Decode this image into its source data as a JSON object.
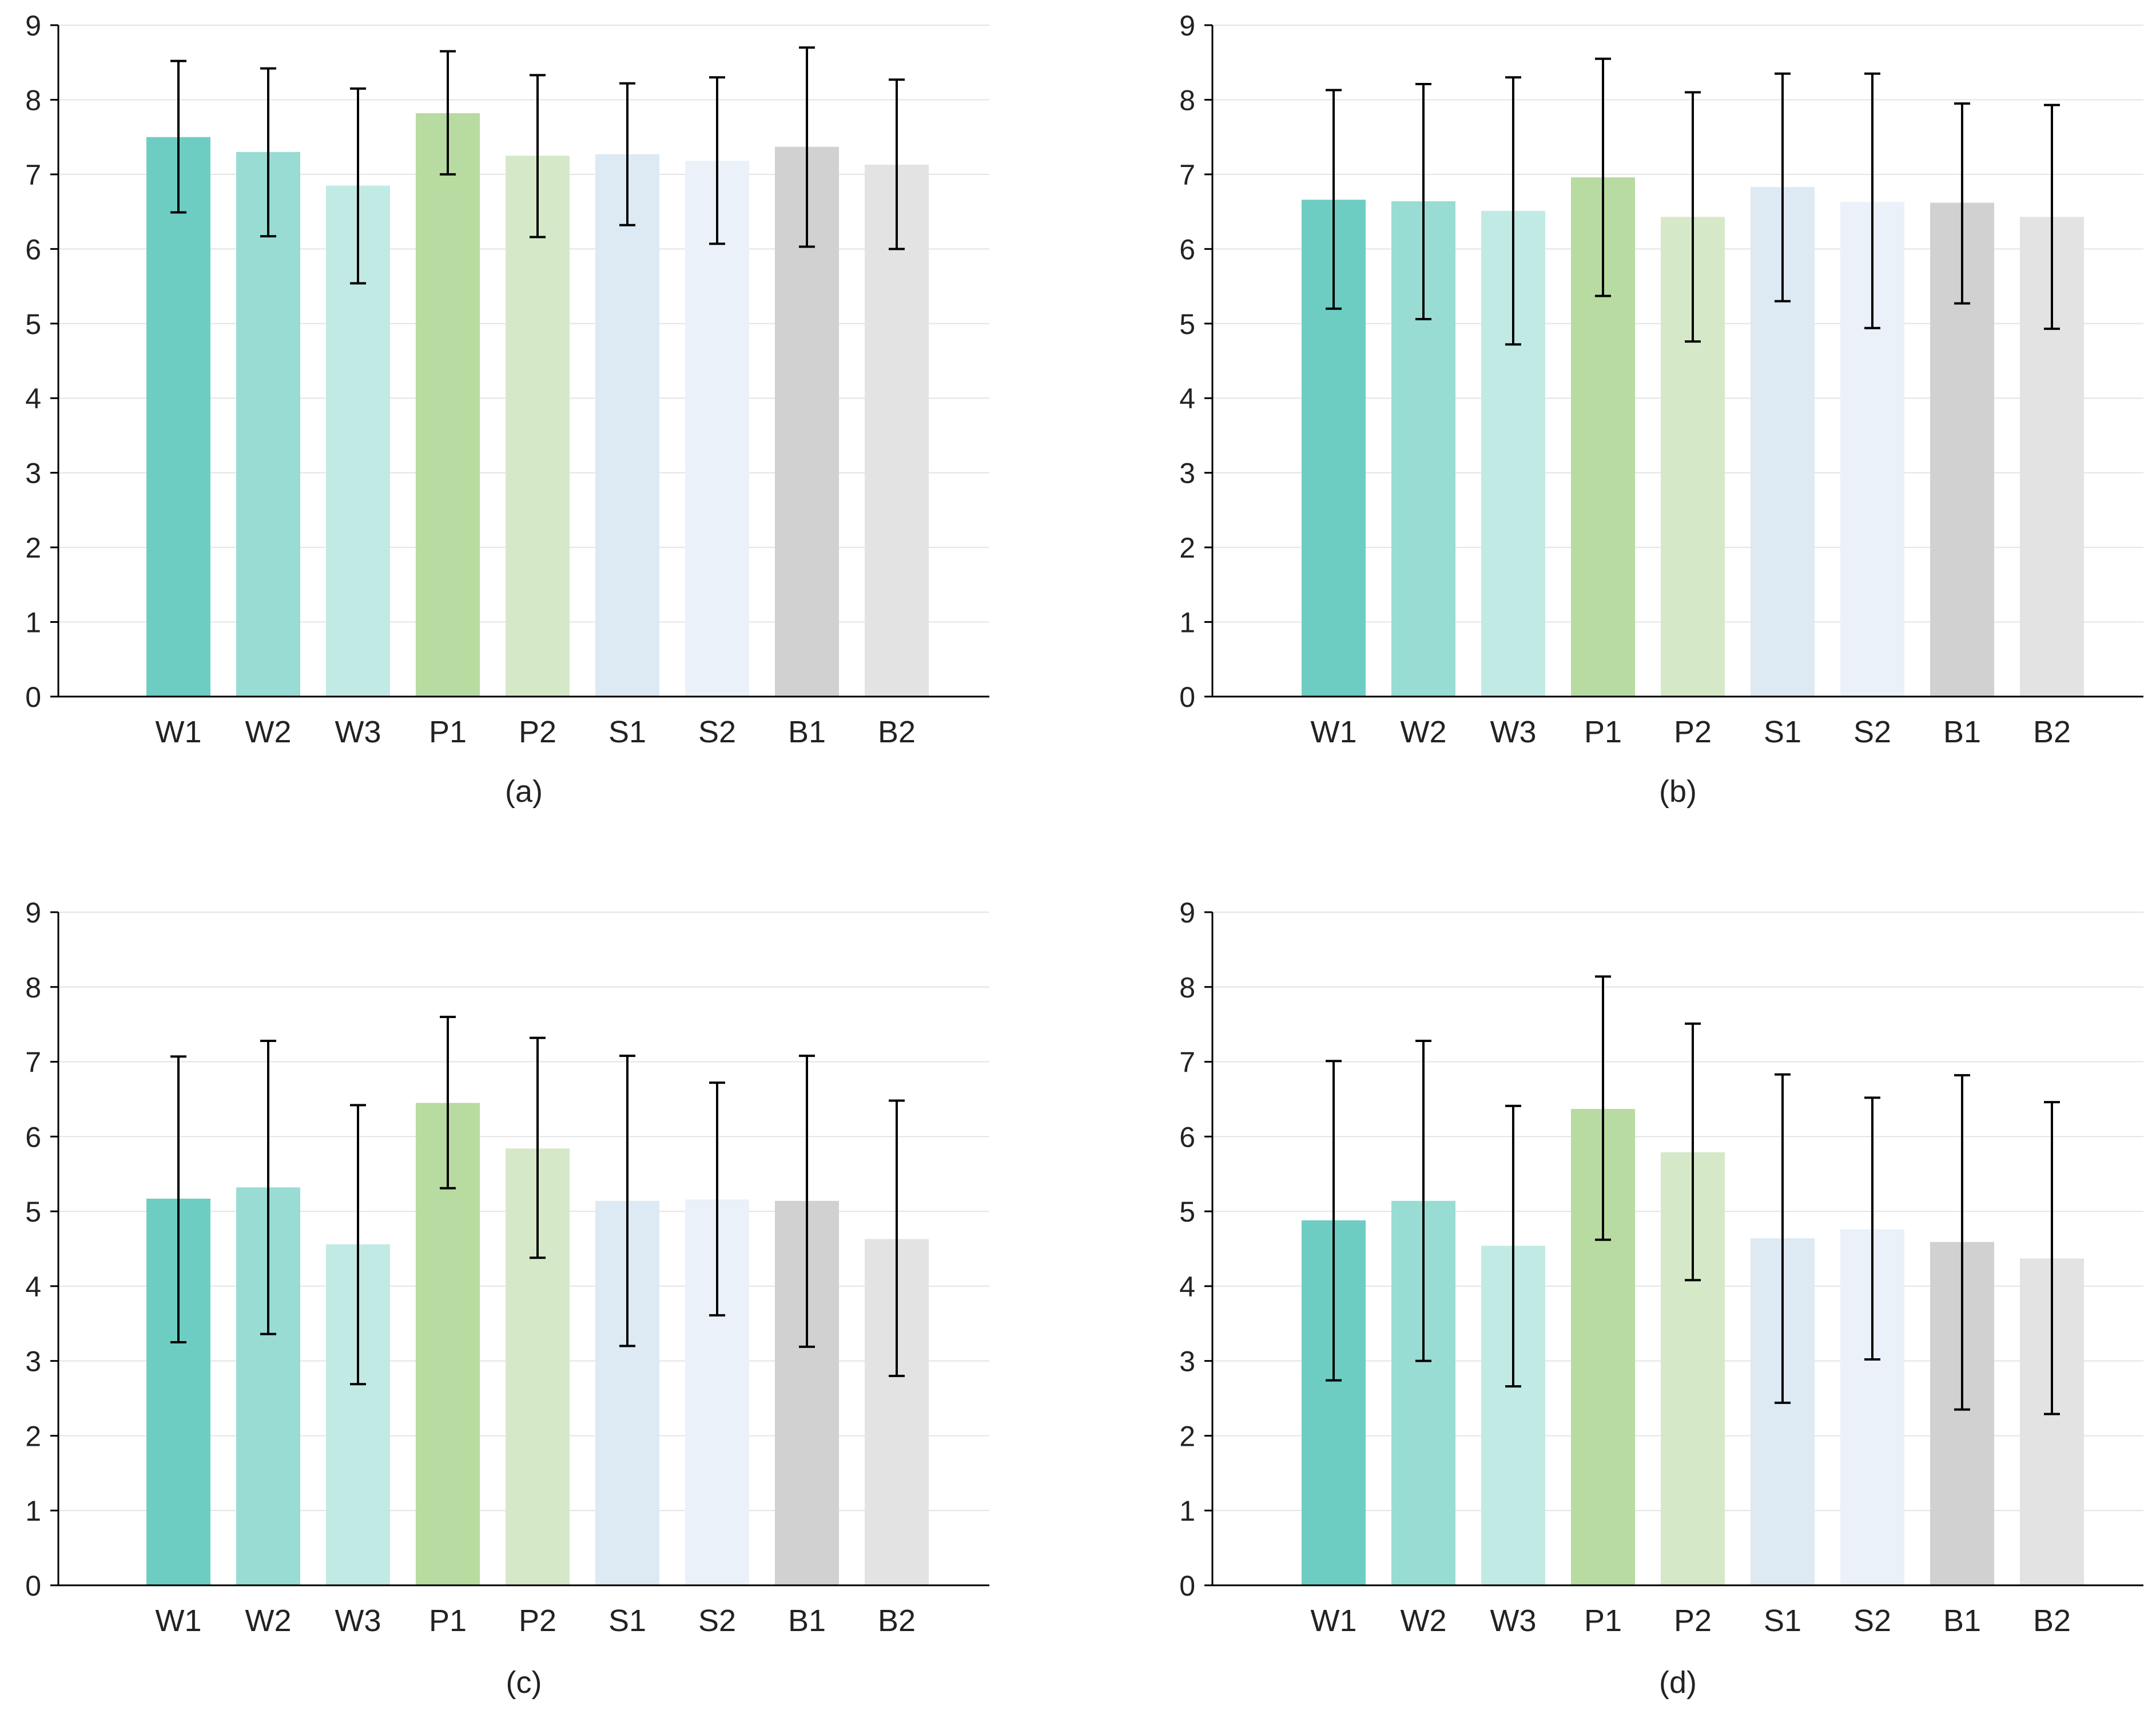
{
  "chart_data": [
    {
      "type": "bar",
      "title": "",
      "xlabel": "",
      "ylabel": "",
      "panel_label": "(a)",
      "categories": [
        "W1",
        "W2",
        "W3",
        "P1",
        "P2",
        "S1",
        "S2",
        "B1",
        "B2"
      ],
      "values": [
        7.5,
        7.3,
        6.85,
        7.82,
        7.25,
        7.27,
        7.18,
        7.37,
        7.13
      ],
      "error_low": [
        6.49,
        6.17,
        5.54,
        7.0,
        6.16,
        6.32,
        6.07,
        6.03,
        6.0
      ],
      "error_high": [
        8.52,
        8.42,
        8.15,
        8.65,
        8.33,
        8.22,
        8.3,
        8.7,
        8.27
      ],
      "ylim": [
        0,
        9
      ],
      "yticks": [
        0,
        1,
        2,
        3,
        4,
        5,
        6,
        7,
        8,
        9
      ],
      "grid": true
    },
    {
      "type": "bar",
      "title": "",
      "xlabel": "",
      "ylabel": "",
      "panel_label": "(b)",
      "categories": [
        "W1",
        "W2",
        "W3",
        "P1",
        "P2",
        "S1",
        "S2",
        "B1",
        "B2"
      ],
      "values": [
        6.66,
        6.64,
        6.51,
        6.96,
        6.43,
        6.83,
        6.63,
        6.62,
        6.43
      ],
      "error_low": [
        5.2,
        5.06,
        4.72,
        5.37,
        4.76,
        5.3,
        4.94,
        5.27,
        4.93
      ],
      "error_high": [
        8.13,
        8.21,
        8.3,
        8.55,
        8.1,
        8.35,
        8.35,
        7.95,
        7.93
      ],
      "ylim": [
        0,
        9
      ],
      "yticks": [
        0,
        1,
        2,
        3,
        4,
        5,
        6,
        7,
        8,
        9
      ],
      "grid": true
    },
    {
      "type": "bar",
      "title": "",
      "xlabel": "",
      "ylabel": "",
      "panel_label": "(c)",
      "categories": [
        "W1",
        "W2",
        "W3",
        "P1",
        "P2",
        "S1",
        "S2",
        "B1",
        "B2"
      ],
      "values": [
        5.17,
        5.32,
        4.56,
        6.45,
        5.84,
        5.14,
        5.16,
        5.14,
        4.63
      ],
      "error_low": [
        3.25,
        3.36,
        2.69,
        5.31,
        4.38,
        3.2,
        3.61,
        3.19,
        2.8
      ],
      "error_high": [
        7.07,
        7.28,
        6.42,
        7.6,
        7.32,
        7.08,
        6.72,
        7.08,
        6.48
      ],
      "ylim": [
        0,
        9
      ],
      "yticks": [
        0,
        1,
        2,
        3,
        4,
        5,
        6,
        7,
        8,
        9
      ],
      "grid": true
    },
    {
      "type": "bar",
      "title": "",
      "xlabel": "",
      "ylabel": "",
      "panel_label": "(d)",
      "categories": [
        "W1",
        "W2",
        "W3",
        "P1",
        "P2",
        "S1",
        "S2",
        "B1",
        "B2"
      ],
      "values": [
        4.88,
        5.14,
        4.54,
        6.37,
        5.79,
        4.64,
        4.76,
        4.59,
        4.37
      ],
      "error_low": [
        2.74,
        3.0,
        2.66,
        4.62,
        4.08,
        2.44,
        3.02,
        2.35,
        2.29
      ],
      "error_high": [
        7.01,
        7.28,
        6.41,
        8.14,
        7.51,
        6.83,
        6.52,
        6.82,
        6.46
      ],
      "ylim": [
        0,
        9
      ],
      "yticks": [
        0,
        1,
        2,
        3,
        4,
        5,
        6,
        7,
        8,
        9
      ],
      "grid": true
    }
  ],
  "colors": {
    "bars": [
      "#6ecdc2",
      "#98dcd4",
      "#c2eae5",
      "#b8dba1",
      "#d5e9c8",
      "#dde9f3",
      "#eaf1f8",
      "#d1d1d1",
      "#e3e3e3"
    ],
    "axis": "#000000",
    "grid": "#e4e4e4",
    "error_bar": "#000000"
  }
}
